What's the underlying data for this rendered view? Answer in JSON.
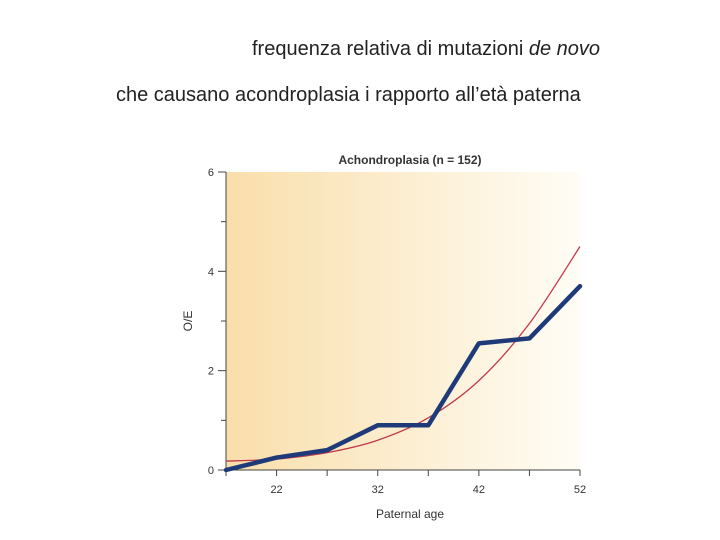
{
  "slide": {
    "caption_line1_main": "frequenza relativa di mutazioni ",
    "caption_line1_italic": "de novo",
    "caption_line2": "che causano acondroplasia i rapporto all’età paterna"
  },
  "colors": {
    "observed": "#1f3a78",
    "fitted": "#c0394b",
    "bg_left": "#f9deaa",
    "bg_right": "#fffdf6"
  },
  "chart_data": {
    "type": "line",
    "title": "Achondroplasia (n = 152)",
    "xlabel": "Paternal age",
    "ylabel": "O/E",
    "xlim": [
      17,
      52
    ],
    "ylim": [
      0,
      6
    ],
    "x_ticks": [
      22,
      32,
      42,
      52
    ],
    "y_ticks": [
      0,
      2,
      4,
      6
    ],
    "series": [
      {
        "points": [
          [
            17,
            0.0
          ],
          [
            22,
            0.25
          ],
          [
            27,
            0.4
          ],
          [
            32,
            0.9
          ],
          [
            37,
            0.9
          ],
          [
            42,
            2.55
          ],
          [
            47,
            2.65
          ],
          [
            52,
            3.7
          ]
        ]
      },
      {
        "points": [
          [
            17,
            0.18
          ],
          [
            22,
            0.22
          ],
          [
            27,
            0.35
          ],
          [
            32,
            0.6
          ],
          [
            37,
            1.05
          ],
          [
            42,
            1.8
          ],
          [
            47,
            2.95
          ],
          [
            52,
            4.5
          ]
        ]
      }
    ],
    "grid": false,
    "legend": "none"
  }
}
